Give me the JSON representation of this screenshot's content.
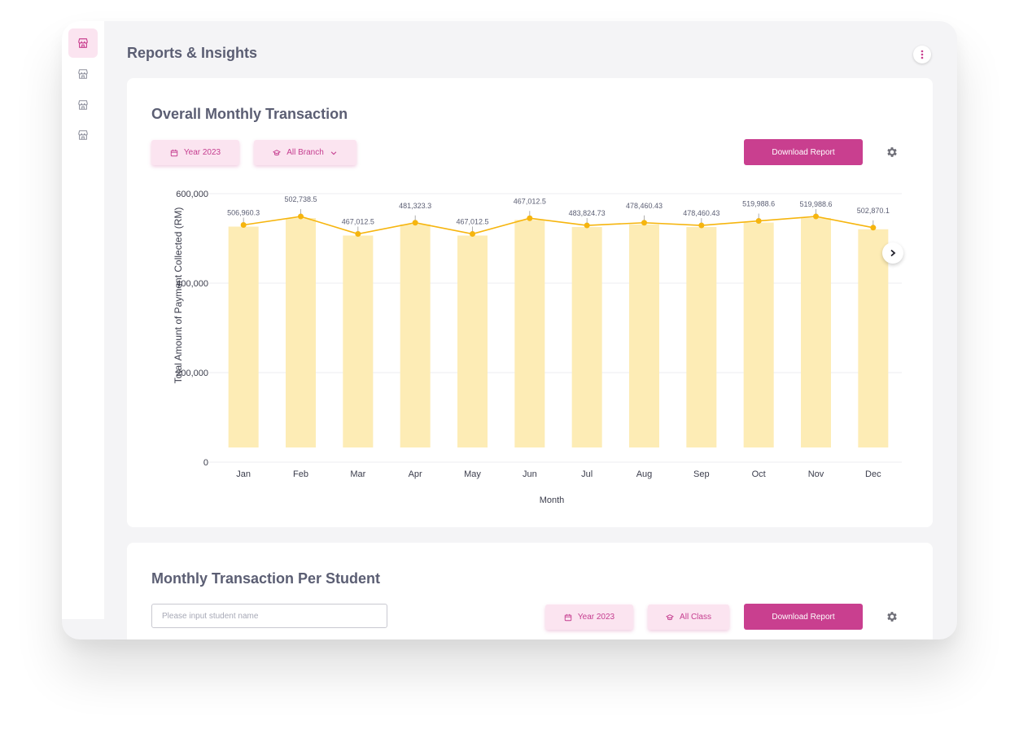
{
  "sidebar": {
    "items": [
      {
        "icon": "store-icon",
        "active": true
      },
      {
        "icon": "store-icon",
        "active": false
      },
      {
        "icon": "store-icon",
        "active": false
      },
      {
        "icon": "store-icon",
        "active": false
      }
    ]
  },
  "header": {
    "title": "Reports & Insights"
  },
  "overall": {
    "title": "Overall Monthly Transaction",
    "year_label": "Year 2023",
    "branch_label": "All Branch",
    "download_label": "Download Report"
  },
  "per_student": {
    "title": "Monthly Transaction Per Student",
    "search_placeholder": "Please input student name",
    "year_label": "Year 2023",
    "class_label": "All Class",
    "download_label": "Download Report"
  },
  "colors": {
    "accent": "#c93f8f",
    "pill_bg": "#fbe4f0",
    "bar": "#fdecb5",
    "line": "#f6b50e"
  },
  "chart_data": {
    "type": "bar",
    "categories": [
      "Jan",
      "Feb",
      "Mar",
      "Apr",
      "May",
      "Jun",
      "Jul",
      "Aug",
      "Sep",
      "Oct",
      "Nov",
      "Dec"
    ],
    "series": [
      {
        "name": "",
        "kind": "bar",
        "values": [
          506960.3,
          502738.5,
          467012.5,
          481323.3,
          467012.5,
          467012.5,
          483824.73,
          478460.43,
          478460.43,
          519988.6,
          519988.6,
          502870.1
        ]
      },
      {
        "name": "",
        "kind": "line",
        "values": [
          530000,
          549000,
          510000,
          535000,
          510000,
          545000,
          529000,
          535000,
          529000,
          539000,
          549000,
          524000
        ]
      }
    ],
    "data_labels": [
      "506,960.3",
      "502,738.5",
      "467,012.5",
      "481,323.3",
      "467,012.5",
      "467,012.5",
      "483,824.73",
      "478,460.43",
      "478,460.43",
      "519,988.6",
      "519,988.6",
      "502,870.1"
    ],
    "yticks": [
      "600,000",
      "400,000",
      "200,000",
      "0"
    ],
    "ytick_values": [
      600000,
      400000,
      200000,
      0
    ],
    "ylim": [
      0,
      600000
    ],
    "xlabel": "Month",
    "ylabel": "Total Amount of Payment Collected (RM)",
    "grid": true
  }
}
